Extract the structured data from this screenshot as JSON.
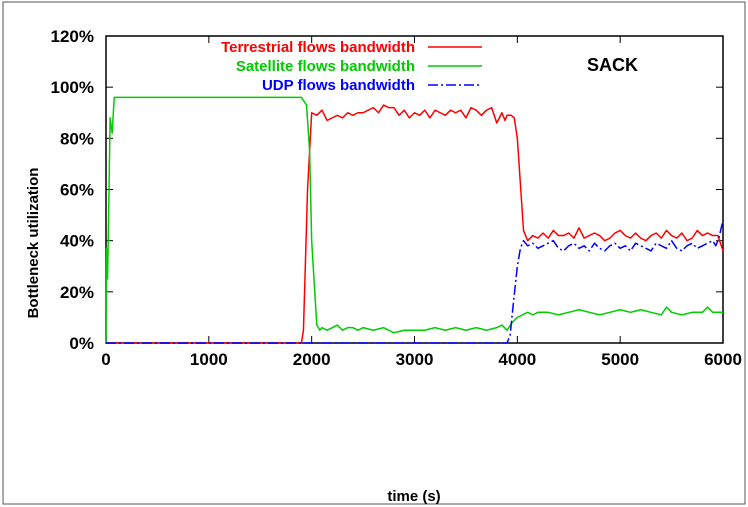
{
  "chart_data": {
    "type": "line",
    "title": "",
    "annotation": "SACK",
    "xlabel": "time (s)",
    "ylabel": "Bottleneck utilization",
    "xlim": [
      0,
      6000
    ],
    "ylim": [
      0,
      120
    ],
    "xticks": [
      0,
      1000,
      2000,
      3000,
      4000,
      5000,
      6000
    ],
    "yticks": [
      0,
      20,
      40,
      60,
      80,
      100,
      120
    ],
    "ytick_labels": [
      "0%",
      "20%",
      "40%",
      "60%",
      "80%",
      "100%",
      "120%"
    ],
    "grid": false,
    "legend_position": "top-center",
    "series": [
      {
        "name": "Terrestrial flows bandwidth",
        "color": "#ff0000",
        "dash": "solid",
        "x": [
          0,
          1900,
          1920,
          1960,
          2000,
          2050,
          2100,
          2150,
          2200,
          2250,
          2300,
          2350,
          2400,
          2450,
          2500,
          2550,
          2600,
          2650,
          2700,
          2750,
          2800,
          2850,
          2900,
          2950,
          3000,
          3050,
          3100,
          3150,
          3200,
          3250,
          3300,
          3350,
          3400,
          3450,
          3500,
          3550,
          3600,
          3650,
          3700,
          3750,
          3800,
          3850,
          3880,
          3900,
          3940,
          3970,
          4000,
          4030,
          4060,
          4100,
          4150,
          4200,
          4250,
          4300,
          4350,
          4400,
          4450,
          4500,
          4550,
          4600,
          4650,
          4700,
          4750,
          4800,
          4850,
          4900,
          4950,
          5000,
          5050,
          5100,
          5150,
          5200,
          5250,
          5300,
          5350,
          5400,
          5450,
          5500,
          5550,
          5600,
          5650,
          5700,
          5750,
          5800,
          5850,
          5900,
          5950,
          6000
        ],
        "y": [
          0,
          0,
          5,
          60,
          90,
          89,
          91,
          87,
          88,
          89,
          88,
          90,
          89,
          90,
          90,
          91,
          92,
          90,
          93,
          92,
          92,
          89,
          91,
          88,
          90,
          89,
          91,
          88,
          91,
          90,
          89,
          91,
          90,
          91,
          88,
          92,
          91,
          89,
          91,
          92,
          86,
          90,
          87,
          89,
          89,
          88,
          80,
          62,
          44,
          40,
          42,
          41,
          43,
          41,
          44,
          42,
          42,
          43,
          41,
          45,
          41,
          42,
          43,
          42,
          40,
          41,
          43,
          44,
          42,
          41,
          43,
          41,
          40,
          42,
          43,
          41,
          44,
          42,
          41,
          43,
          40,
          41,
          44,
          42,
          43,
          42,
          42,
          36
        ]
      },
      {
        "name": "Satellite flows bandwidth",
        "color": "#00cc00",
        "dash": "solid",
        "x": [
          0,
          5,
          15,
          25,
          40,
          60,
          80,
          100,
          500,
          1000,
          1500,
          1900,
          1950,
          1980,
          2000,
          2030,
          2050,
          2080,
          2100,
          2150,
          2200,
          2250,
          2300,
          2350,
          2400,
          2450,
          2500,
          2600,
          2700,
          2800,
          2900,
          3000,
          3100,
          3200,
          3300,
          3400,
          3500,
          3600,
          3700,
          3800,
          3850,
          3900,
          3950,
          4000,
          4050,
          4100,
          4150,
          4200,
          4300,
          4400,
          4500,
          4600,
          4700,
          4800,
          4900,
          5000,
          5100,
          5200,
          5300,
          5400,
          5450,
          5500,
          5600,
          5700,
          5800,
          5850,
          5900,
          6000
        ],
        "y": [
          0,
          37,
          25,
          48,
          88,
          82,
          96,
          96,
          96,
          96,
          96,
          96,
          93,
          75,
          40,
          20,
          7,
          5,
          6,
          5,
          6,
          7,
          5,
          6,
          6,
          5,
          6,
          5,
          6,
          4,
          5,
          5,
          5,
          6,
          5,
          6,
          5,
          6,
          5,
          6,
          7,
          5,
          8,
          10,
          11,
          12,
          11,
          12,
          12,
          11,
          12,
          13,
          12,
          11,
          12,
          13,
          12,
          13,
          12,
          11,
          14,
          12,
          11,
          12,
          12,
          14,
          12,
          12
        ]
      },
      {
        "name": "UDP flows bandwidth",
        "color": "#0000ff",
        "dash": "dashdot",
        "x": [
          0,
          3900,
          3930,
          3960,
          4000,
          4030,
          4060,
          4100,
          4150,
          4200,
          4250,
          4300,
          4350,
          4400,
          4450,
          4500,
          4550,
          4600,
          4650,
          4700,
          4750,
          4800,
          4850,
          4900,
          4950,
          5000,
          5050,
          5100,
          5150,
          5200,
          5250,
          5300,
          5350,
          5400,
          5450,
          5500,
          5550,
          5600,
          5650,
          5700,
          5750,
          5800,
          5850,
          5900,
          5930,
          5960,
          6000
        ],
        "y": [
          0,
          0,
          3,
          15,
          30,
          37,
          40,
          38,
          39,
          37,
          38,
          39,
          40,
          37,
          36,
          38,
          39,
          37,
          38,
          36,
          39,
          37,
          36,
          38,
          39,
          37,
          38,
          36,
          39,
          38,
          37,
          36,
          39,
          38,
          37,
          40,
          37,
          36,
          38,
          39,
          37,
          38,
          39,
          40,
          38,
          41,
          48
        ]
      }
    ]
  }
}
